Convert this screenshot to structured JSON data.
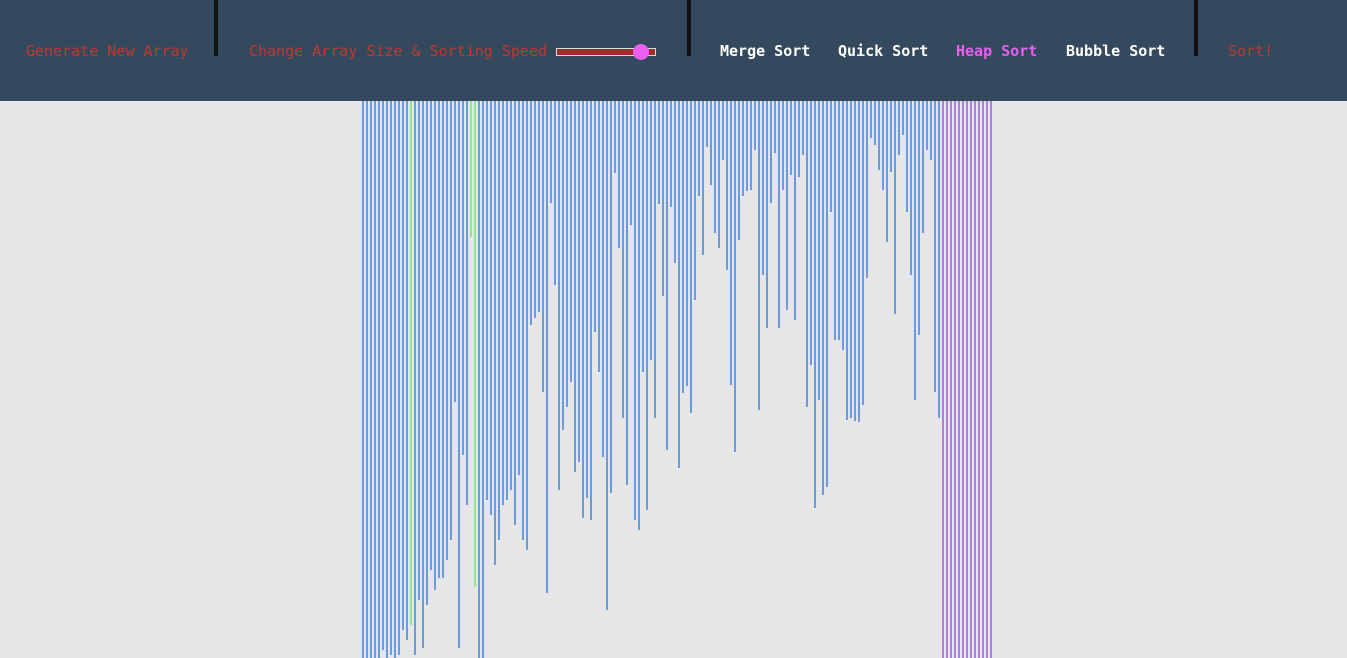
{
  "nav": {
    "generate": "Generate New Array",
    "size_speed": "Change Array Size & Sorting Speed",
    "algorithms": [
      "Merge Sort",
      "Quick Sort",
      "Heap Sort",
      "Bubble Sort"
    ],
    "selected_algorithm": 2,
    "sort": "Sort!"
  },
  "array": {
    "values": [
      557,
      557,
      557,
      557,
      557,
      549,
      557,
      554,
      557,
      554,
      529,
      539,
      524,
      554,
      499,
      547,
      504,
      469,
      489,
      477,
      477,
      459,
      439,
      301,
      547,
      354,
      404,
      136,
      486,
      557,
      557,
      399,
      414,
      464,
      439,
      404,
      399,
      389,
      424,
      374,
      439,
      449,
      224,
      217,
      211,
      291,
      492,
      102,
      184,
      389,
      329,
      306,
      281,
      371,
      361,
      417,
      397,
      419,
      231,
      271,
      356,
      509,
      392,
      72,
      147,
      317,
      384,
      124,
      419,
      429,
      271,
      409,
      259,
      317,
      103,
      195,
      349,
      106,
      162,
      367,
      292,
      285,
      312,
      199,
      95,
      154,
      46,
      84,
      132,
      147,
      59,
      169,
      284,
      351,
      139,
      95,
      90,
      89,
      49,
      309,
      174,
      227,
      102,
      52,
      227,
      89,
      209,
      74,
      219,
      76,
      54,
      306,
      264,
      407,
      299,
      394,
      386,
      111,
      239,
      239,
      249,
      319,
      317,
      320,
      321,
      304,
      177,
      37,
      44,
      69,
      89,
      141,
      71,
      213,
      54,
      34,
      111,
      174,
      299,
      234,
      132,
      49,
      59,
      291,
      317,
      557,
      557,
      557,
      557,
      557,
      557,
      557,
      557,
      557,
      557,
      557,
      557,
      557
    ],
    "bar_color": "#6a9be0",
    "compare_color": "#8ee68e",
    "sorted_color": "#b07fd8",
    "compare_indices": [
      12,
      27,
      28
    ],
    "sorted_count": 13
  }
}
